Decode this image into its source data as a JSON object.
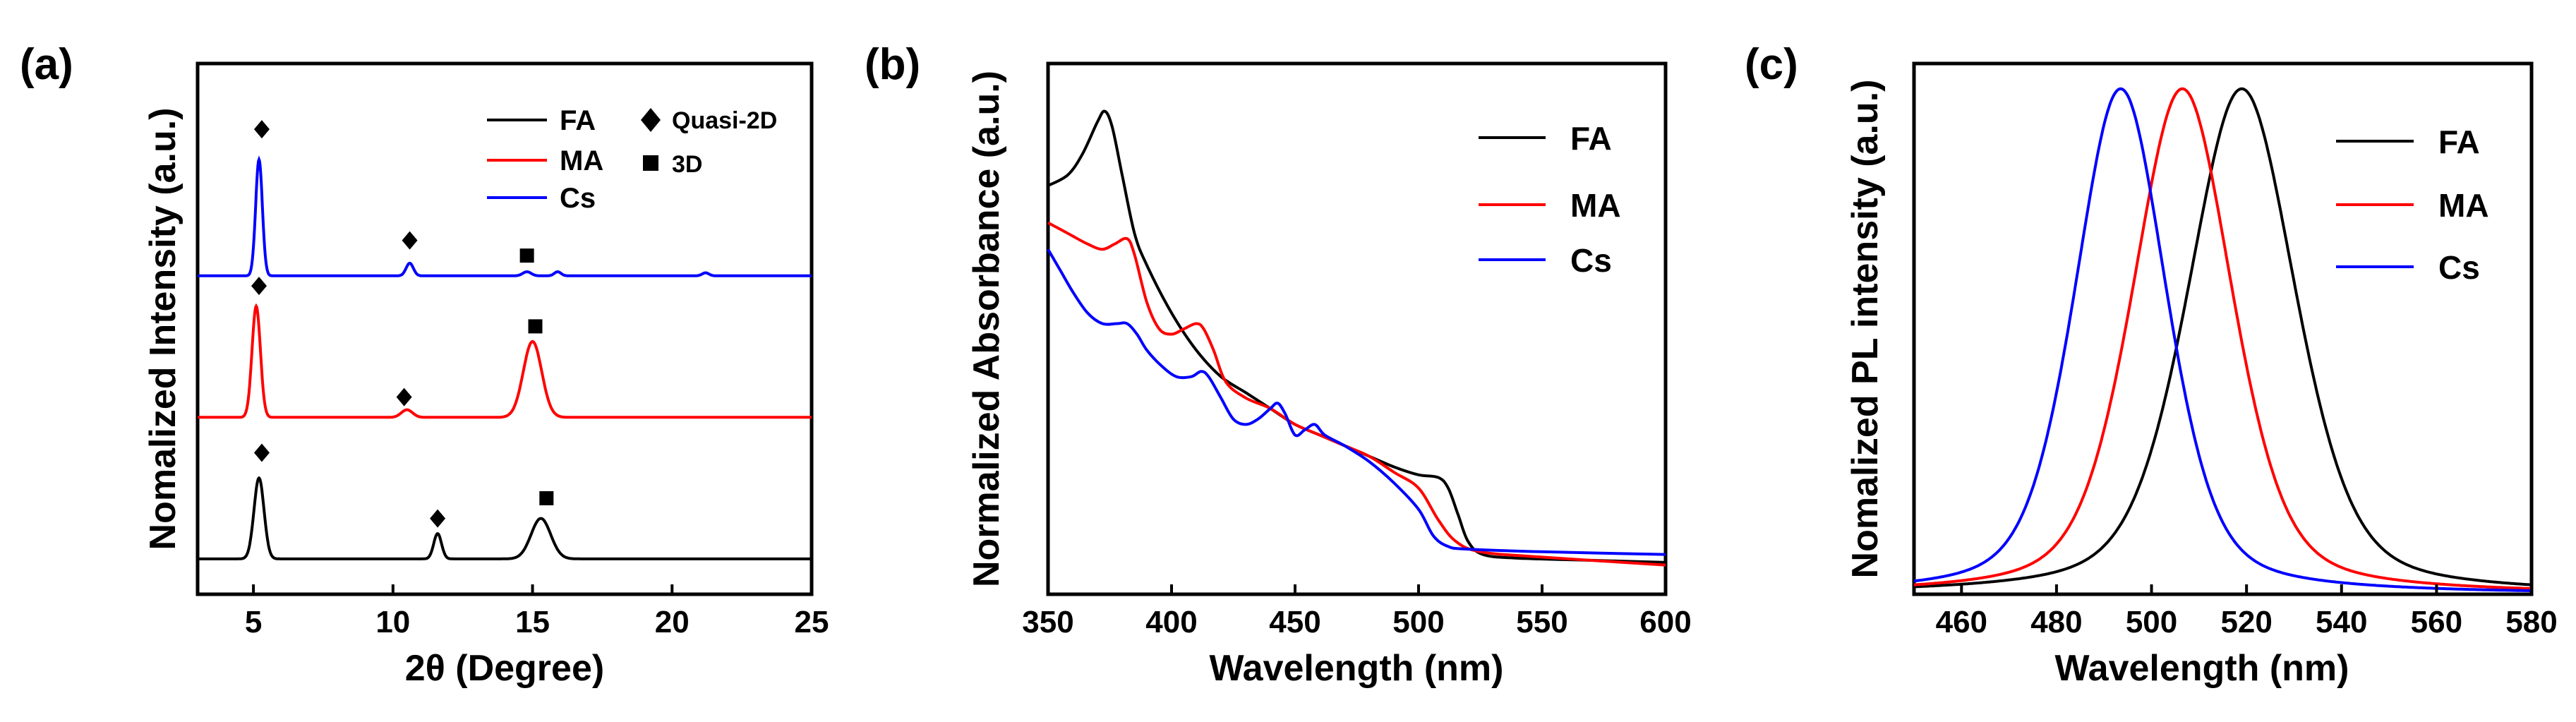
{
  "figure": {
    "background": "#ffffff",
    "axis_color": "#000000"
  },
  "chart_data": [
    {
      "id": "a",
      "panel_label": "(a)",
      "type": "line",
      "xlabel": "2θ (Degree)",
      "ylabel": "Nomalized Intensity (a.u.)",
      "xlim": [
        3,
        25
      ],
      "ylim": [
        0,
        1.05
      ],
      "xticks": [
        5,
        10,
        15,
        20,
        25
      ],
      "yticks": [],
      "legend": {
        "placement": "top-right",
        "columns": [
          [
            "FA",
            "MA",
            "Cs"
          ],
          [
            "Quasi-2D",
            "3D"
          ]
        ]
      },
      "series": [
        {
          "name": "FA",
          "color": "#000000",
          "baseline": 0.07,
          "peaks": [
            {
              "x": 5.2,
              "h": 0.16,
              "w": 0.18
            },
            {
              "x": 11.6,
              "h": 0.05,
              "w": 0.14
            },
            {
              "x": 15.3,
              "h": 0.08,
              "w": 0.35
            }
          ]
        },
        {
          "name": "MA",
          "color": "#ff0000",
          "baseline": 0.35,
          "peaks": [
            {
              "x": 5.1,
              "h": 0.22,
              "w": 0.15
            },
            {
              "x": 10.5,
              "h": 0.015,
              "w": 0.2
            },
            {
              "x": 15.0,
              "h": 0.15,
              "w": 0.33
            }
          ]
        },
        {
          "name": "Cs",
          "color": "#0000ff",
          "baseline": 0.63,
          "peaks": [
            {
              "x": 5.2,
              "h": 0.23,
              "w": 0.12
            },
            {
              "x": 10.6,
              "h": 0.025,
              "w": 0.13
            },
            {
              "x": 14.8,
              "h": 0.008,
              "w": 0.15
            },
            {
              "x": 15.9,
              "h": 0.008,
              "w": 0.12
            },
            {
              "x": 21.2,
              "h": 0.006,
              "w": 0.12
            }
          ]
        }
      ],
      "markers": [
        {
          "symbol": "diamond",
          "x": 5.3,
          "y": 0.92
        },
        {
          "symbol": "diamond",
          "x": 10.6,
          "y": 0.7
        },
        {
          "symbol": "square",
          "x": 14.8,
          "y": 0.67
        },
        {
          "symbol": "diamond",
          "x": 5.2,
          "y": 0.61
        },
        {
          "symbol": "diamond",
          "x": 10.4,
          "y": 0.39
        },
        {
          "symbol": "square",
          "x": 15.1,
          "y": 0.53
        },
        {
          "symbol": "diamond",
          "x": 5.3,
          "y": 0.28
        },
        {
          "symbol": "diamond",
          "x": 11.6,
          "y": 0.15
        },
        {
          "symbol": "square",
          "x": 15.5,
          "y": 0.19
        }
      ]
    },
    {
      "id": "b",
      "panel_label": "(b)",
      "type": "line",
      "xlabel": "Wavelength (nm)",
      "ylabel": "Normalized Absorbance (a.u.)",
      "xlim": [
        350,
        600
      ],
      "ylim": [
        0,
        1.0
      ],
      "xticks": [
        350,
        400,
        450,
        500,
        550,
        600
      ],
      "yticks": [],
      "legend": {
        "placement": "top-right",
        "entries": [
          "FA",
          "MA",
          "Cs"
        ]
      },
      "series": [
        {
          "name": "FA",
          "color": "#000000",
          "points": [
            [
              350,
              0.77
            ],
            [
              358,
              0.79
            ],
            [
              364,
              0.83
            ],
            [
              370,
              0.89
            ],
            [
              373,
              0.91
            ],
            [
              376,
              0.88
            ],
            [
              380,
              0.79
            ],
            [
              385,
              0.68
            ],
            [
              390,
              0.62
            ],
            [
              400,
              0.53
            ],
            [
              410,
              0.46
            ],
            [
              420,
              0.41
            ],
            [
              430,
              0.38
            ],
            [
              440,
              0.35
            ],
            [
              450,
              0.32
            ],
            [
              460,
              0.3
            ],
            [
              470,
              0.28
            ],
            [
              480,
              0.26
            ],
            [
              490,
              0.24
            ],
            [
              500,
              0.225
            ],
            [
              508,
              0.22
            ],
            [
              512,
              0.2
            ],
            [
              516,
              0.15
            ],
            [
              520,
              0.1
            ],
            [
              526,
              0.075
            ],
            [
              540,
              0.068
            ],
            [
              570,
              0.064
            ],
            [
              600,
              0.06
            ]
          ]
        },
        {
          "name": "MA",
          "color": "#ff0000",
          "points": [
            [
              350,
              0.7
            ],
            [
              358,
              0.68
            ],
            [
              366,
              0.66
            ],
            [
              372,
              0.65
            ],
            [
              377,
              0.66
            ],
            [
              382,
              0.67
            ],
            [
              385,
              0.64
            ],
            [
              390,
              0.55
            ],
            [
              395,
              0.5
            ],
            [
              400,
              0.49
            ],
            [
              405,
              0.5
            ],
            [
              410,
              0.51
            ],
            [
              413,
              0.5
            ],
            [
              417,
              0.46
            ],
            [
              422,
              0.4
            ],
            [
              430,
              0.37
            ],
            [
              440,
              0.35
            ],
            [
              450,
              0.32
            ],
            [
              460,
              0.3
            ],
            [
              470,
              0.28
            ],
            [
              480,
              0.26
            ],
            [
              490,
              0.23
            ],
            [
              500,
              0.2
            ],
            [
              508,
              0.14
            ],
            [
              515,
              0.1
            ],
            [
              525,
              0.08
            ],
            [
              550,
              0.07
            ],
            [
              600,
              0.055
            ]
          ]
        },
        {
          "name": "Cs",
          "color": "#0000ff",
          "points": [
            [
              350,
              0.65
            ],
            [
              355,
              0.61
            ],
            [
              360,
              0.57
            ],
            [
              366,
              0.53
            ],
            [
              372,
              0.51
            ],
            [
              378,
              0.51
            ],
            [
              382,
              0.51
            ],
            [
              386,
              0.49
            ],
            [
              390,
              0.46
            ],
            [
              396,
              0.43
            ],
            [
              402,
              0.41
            ],
            [
              408,
              0.41
            ],
            [
              412,
              0.42
            ],
            [
              415,
              0.41
            ],
            [
              420,
              0.37
            ],
            [
              425,
              0.33
            ],
            [
              430,
              0.32
            ],
            [
              435,
              0.33
            ],
            [
              440,
              0.35
            ],
            [
              443,
              0.36
            ],
            [
              446,
              0.34
            ],
            [
              450,
              0.3
            ],
            [
              454,
              0.31
            ],
            [
              458,
              0.32
            ],
            [
              462,
              0.3
            ],
            [
              470,
              0.28
            ],
            [
              480,
              0.25
            ],
            [
              490,
              0.21
            ],
            [
              500,
              0.16
            ],
            [
              506,
              0.11
            ],
            [
              512,
              0.09
            ],
            [
              520,
              0.085
            ],
            [
              550,
              0.08
            ],
            [
              600,
              0.075
            ]
          ]
        }
      ]
    },
    {
      "id": "c",
      "panel_label": "(c)",
      "type": "line",
      "xlabel": "Wavelength (nm)",
      "ylabel": "Nomalized PL intensity (a.u.)",
      "xlim": [
        450,
        580
      ],
      "ylim": [
        0,
        1.05
      ],
      "xticks": [
        460,
        480,
        500,
        520,
        540,
        560,
        580
      ],
      "yticks": [],
      "legend": {
        "placement": "top-right",
        "entries": [
          "FA",
          "MA",
          "Cs"
        ]
      },
      "series": [
        {
          "name": "FA",
          "color": "#000000",
          "peak": {
            "x": 519,
            "h": 1.0,
            "fwhm": 27
          }
        },
        {
          "name": "MA",
          "color": "#ff0000",
          "peak": {
            "x": 506.5,
            "h": 1.0,
            "fwhm": 25
          }
        },
        {
          "name": "Cs",
          "color": "#0000ff",
          "peak": {
            "x": 493.5,
            "h": 1.0,
            "fwhm": 23
          }
        }
      ]
    }
  ]
}
